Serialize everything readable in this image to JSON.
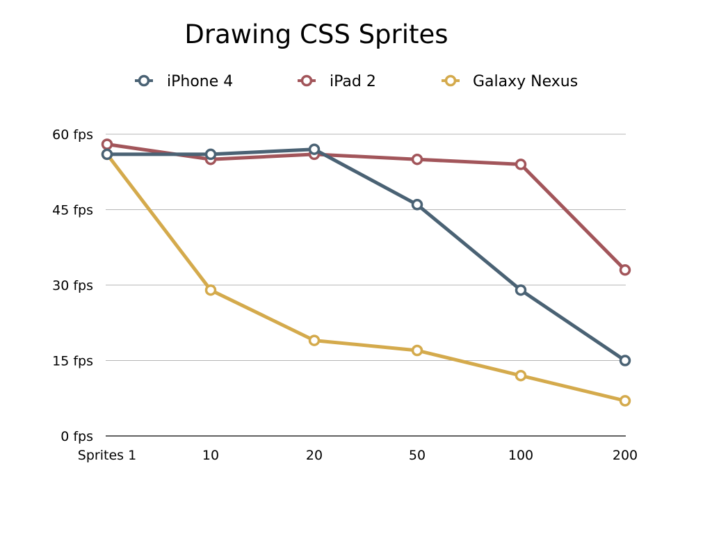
{
  "chart_data": {
    "type": "line",
    "title": "Drawing CSS Sprites",
    "xlabel": "",
    "ylabel": "",
    "categories": [
      "Sprites 1",
      "10",
      "20",
      "50",
      "100",
      "200"
    ],
    "y_ticks": [
      "0 fps",
      "15 fps",
      "30 fps",
      "45 fps",
      "60 fps"
    ],
    "ylim": [
      0,
      60
    ],
    "grid": true,
    "legend_position": "top",
    "series": [
      {
        "name": "iPhone 4",
        "color": "#4a6274",
        "values": [
          56,
          56,
          57,
          46,
          29,
          15
        ]
      },
      {
        "name": "iPad 2",
        "color": "#a2555a",
        "values": [
          58,
          55,
          56,
          55,
          54,
          33
        ]
      },
      {
        "name": "Galaxy Nexus",
        "color": "#d4aa4c",
        "values": [
          56,
          29,
          19,
          17,
          12,
          7
        ]
      }
    ]
  }
}
